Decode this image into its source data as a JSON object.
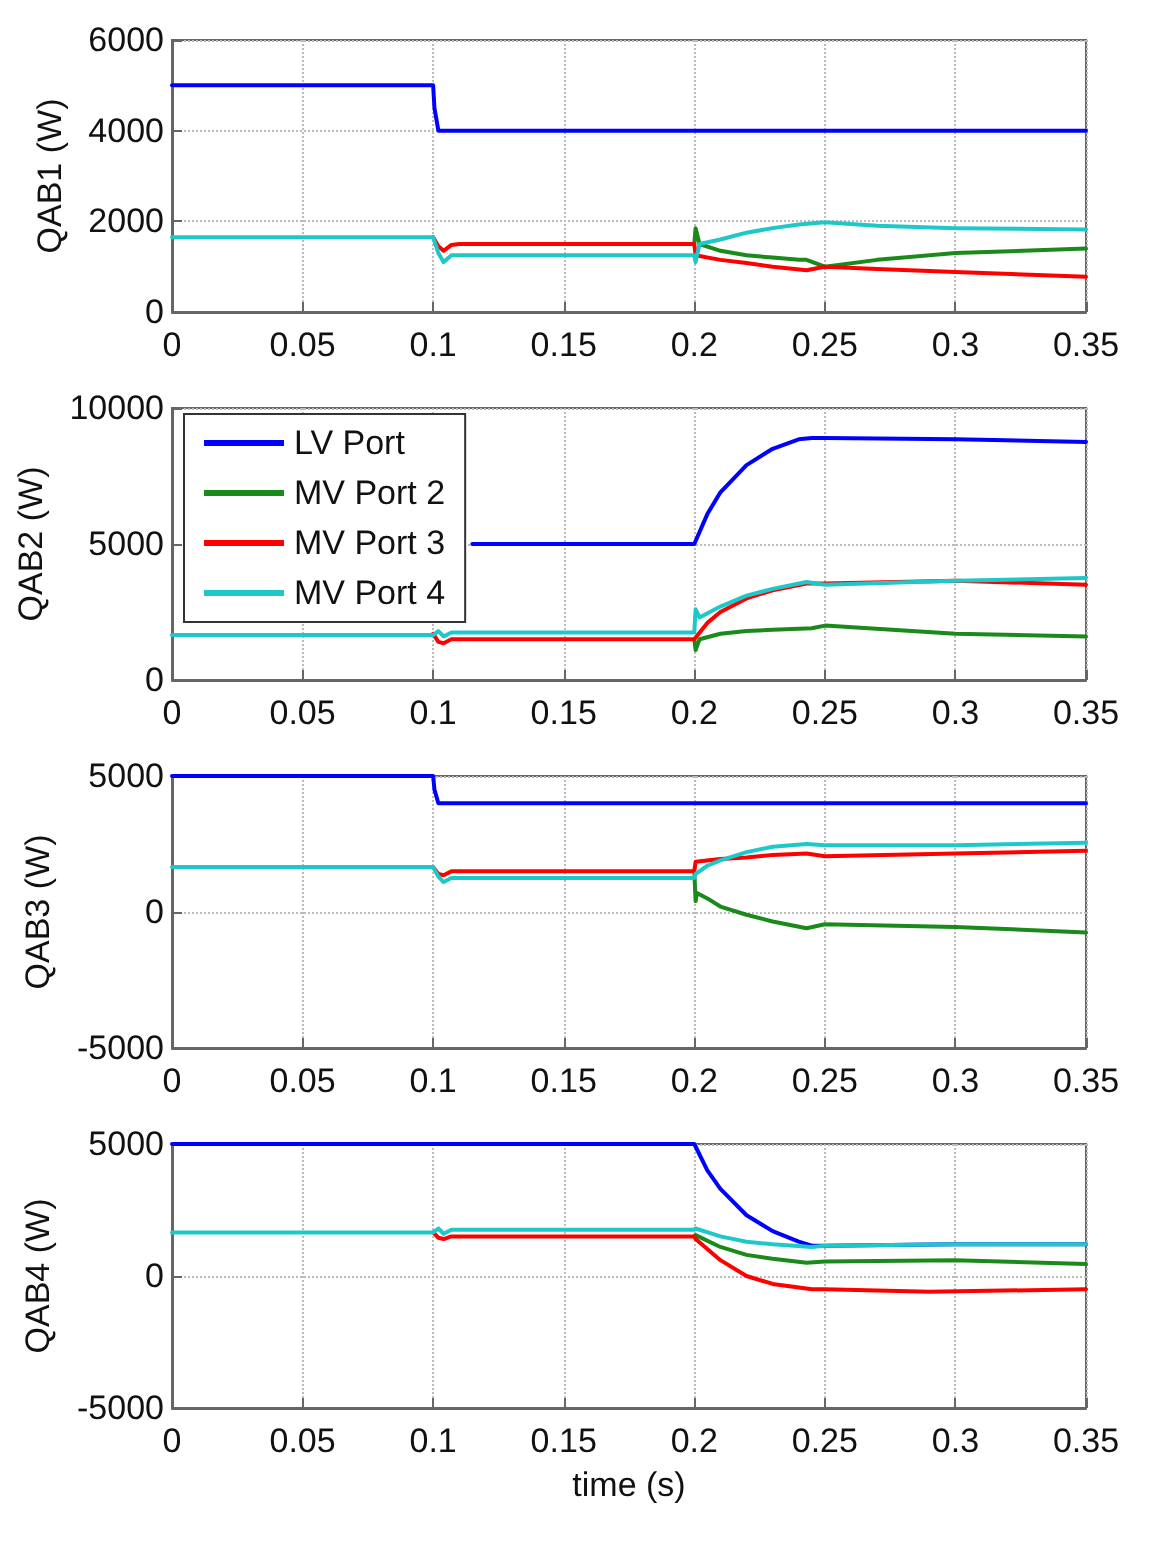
{
  "chart_data": [
    {
      "type": "line",
      "ylabel": "QAB1 (W)",
      "xlim": [
        0,
        0.35
      ],
      "xticks": [
        0,
        0.05,
        0.1,
        0.15,
        0.2,
        0.25,
        0.3,
        0.35
      ],
      "ylim": [
        0,
        6000
      ],
      "yticks": [
        0,
        2000,
        4000,
        6000
      ],
      "grid": true,
      "line_style": "solid",
      "marker": "none",
      "series": [
        {
          "color": "#0000ff",
          "x": [
            0,
            0.1,
            0.1005,
            0.102,
            0.35
          ],
          "values": [
            5000,
            5000,
            4500,
            4000,
            4000
          ]
        },
        {
          "color": "#1a8a1a",
          "x": [
            0.2,
            0.2005,
            0.202,
            0.21,
            0.22,
            0.23,
            0.24,
            0.243,
            0.25,
            0.27,
            0.3,
            0.35
          ],
          "values": [
            1500,
            1850,
            1500,
            1350,
            1250,
            1200,
            1150,
            1150,
            1000,
            1150,
            1300,
            1400
          ]
        },
        {
          "color": "#ff0000",
          "x": [
            0.1,
            0.102,
            0.104,
            0.107,
            0.11,
            0.2,
            0.2005,
            0.21,
            0.22,
            0.23,
            0.243,
            0.25,
            0.27,
            0.3,
            0.35
          ],
          "values": [
            1650,
            1450,
            1350,
            1480,
            1500,
            1500,
            1250,
            1150,
            1080,
            1000,
            920,
            1000,
            950,
            880,
            780
          ]
        },
        {
          "color": "#1fc8c8",
          "x": [
            0,
            0.1,
            0.102,
            0.104,
            0.107,
            0.11,
            0.2,
            0.2005,
            0.202,
            0.21,
            0.22,
            0.23,
            0.24,
            0.25,
            0.27,
            0.3,
            0.35
          ],
          "values": [
            1650,
            1650,
            1300,
            1100,
            1250,
            1250,
            1250,
            1100,
            1500,
            1600,
            1750,
            1850,
            1930,
            1980,
            1900,
            1850,
            1820
          ]
        }
      ]
    },
    {
      "type": "line",
      "ylabel": "QAB2 (W)",
      "xlim": [
        0,
        0.35
      ],
      "xticks": [
        0,
        0.05,
        0.1,
        0.15,
        0.2,
        0.25,
        0.3,
        0.35
      ],
      "ylim": [
        0,
        10000
      ],
      "yticks": [
        0,
        5000,
        10000
      ],
      "grid": true,
      "line_style": "solid",
      "marker": "none",
      "legend": "top left",
      "series": [
        {
          "name": "LV Port",
          "color": "#0000ff",
          "x": [
            0.115,
            0.2,
            0.205,
            0.21,
            0.22,
            0.23,
            0.24,
            0.245,
            0.25,
            0.3,
            0.35
          ],
          "values": [
            5000,
            5000,
            6100,
            6900,
            7900,
            8500,
            8850,
            8900,
            8900,
            8850,
            8750
          ]
        },
        {
          "name": "MV Port 2",
          "color": "#1a8a1a",
          "x": [
            0.2,
            0.2005,
            0.202,
            0.21,
            0.22,
            0.23,
            0.245,
            0.25,
            0.3,
            0.35
          ],
          "values": [
            1500,
            1100,
            1500,
            1700,
            1800,
            1850,
            1900,
            2000,
            1700,
            1600
          ]
        },
        {
          "name": "MV Port 3",
          "color": "#ff0000",
          "x": [
            0.1,
            0.102,
            0.104,
            0.107,
            0.11,
            0.2,
            0.2005,
            0.205,
            0.21,
            0.22,
            0.23,
            0.243,
            0.25,
            0.3,
            0.35
          ],
          "values": [
            1700,
            1400,
            1350,
            1500,
            1500,
            1500,
            1500,
            2100,
            2500,
            3000,
            3300,
            3550,
            3550,
            3650,
            3500
          ]
        },
        {
          "name": "MV Port 4",
          "color": "#1fc8c8",
          "x": [
            0,
            0.1,
            0.102,
            0.104,
            0.107,
            0.11,
            0.2,
            0.2005,
            0.202,
            0.21,
            0.22,
            0.23,
            0.243,
            0.25,
            0.3,
            0.35
          ],
          "values": [
            1650,
            1650,
            1800,
            1600,
            1750,
            1750,
            1750,
            2600,
            2300,
            2700,
            3100,
            3350,
            3600,
            3500,
            3650,
            3750
          ]
        }
      ]
    },
    {
      "type": "line",
      "ylabel": "QAB3 (W)",
      "xlim": [
        0,
        0.35
      ],
      "xticks": [
        0,
        0.05,
        0.1,
        0.15,
        0.2,
        0.25,
        0.3,
        0.35
      ],
      "ylim": [
        -5000,
        5000
      ],
      "yticks": [
        -5000,
        0,
        5000
      ],
      "grid": true,
      "line_style": "solid",
      "marker": "none",
      "series": [
        {
          "color": "#0000ff",
          "x": [
            0,
            0.1,
            0.1005,
            0.102,
            0.35
          ],
          "values": [
            5000,
            5000,
            4500,
            4000,
            4000
          ]
        },
        {
          "color": "#1a8a1a",
          "x": [
            0.2,
            0.2005,
            0.201,
            0.205,
            0.21,
            0.22,
            0.23,
            0.243,
            0.25,
            0.3,
            0.35
          ],
          "values": [
            1500,
            400,
            700,
            500,
            200,
            -100,
            -350,
            -600,
            -450,
            -550,
            -750
          ]
        },
        {
          "color": "#ff0000",
          "x": [
            0.1,
            0.102,
            0.104,
            0.107,
            0.11,
            0.2,
            0.2005,
            0.21,
            0.22,
            0.23,
            0.243,
            0.25,
            0.3,
            0.35
          ],
          "values": [
            1650,
            1400,
            1350,
            1500,
            1500,
            1500,
            1850,
            1950,
            2000,
            2100,
            2150,
            2050,
            2150,
            2250
          ]
        },
        {
          "color": "#1fc8c8",
          "x": [
            0,
            0.1,
            0.102,
            0.104,
            0.107,
            0.11,
            0.2,
            0.2005,
            0.205,
            0.21,
            0.22,
            0.23,
            0.243,
            0.25,
            0.3,
            0.35
          ],
          "values": [
            1650,
            1650,
            1300,
            1100,
            1250,
            1250,
            1250,
            1400,
            1700,
            1900,
            2200,
            2400,
            2500,
            2450,
            2450,
            2550
          ]
        }
      ]
    },
    {
      "type": "line",
      "xlabel": "time (s)",
      "ylabel": "QAB4 (W)",
      "xlim": [
        0,
        0.35
      ],
      "xticks": [
        0,
        0.05,
        0.1,
        0.15,
        0.2,
        0.25,
        0.3,
        0.35
      ],
      "ylim": [
        -5000,
        5000
      ],
      "yticks": [
        -5000,
        0,
        5000
      ],
      "grid": true,
      "line_style": "solid",
      "marker": "none",
      "series": [
        {
          "color": "#0000ff",
          "x": [
            0,
            0.2,
            0.205,
            0.21,
            0.22,
            0.23,
            0.24,
            0.245,
            0.25,
            0.3,
            0.35
          ],
          "values": [
            5000,
            5000,
            4000,
            3300,
            2300,
            1700,
            1300,
            1150,
            1150,
            1200,
            1200
          ]
        },
        {
          "color": "#1a8a1a",
          "x": [
            0.2,
            0.2005,
            0.21,
            0.22,
            0.23,
            0.243,
            0.25,
            0.3,
            0.35
          ],
          "values": [
            1500,
            1550,
            1100,
            800,
            650,
            500,
            550,
            600,
            450
          ]
        },
        {
          "color": "#ff0000",
          "x": [
            0.1,
            0.102,
            0.104,
            0.107,
            0.11,
            0.2,
            0.2005,
            0.21,
            0.22,
            0.23,
            0.245,
            0.25,
            0.29,
            0.35
          ],
          "values": [
            1650,
            1450,
            1400,
            1500,
            1500,
            1500,
            1400,
            600,
            0,
            -300,
            -500,
            -500,
            -600,
            -500
          ]
        },
        {
          "color": "#1fc8c8",
          "x": [
            0,
            0.1,
            0.102,
            0.104,
            0.107,
            0.11,
            0.2,
            0.2005,
            0.21,
            0.22,
            0.23,
            0.245,
            0.25,
            0.3,
            0.35
          ],
          "values": [
            1650,
            1650,
            1800,
            1600,
            1750,
            1750,
            1750,
            1800,
            1500,
            1300,
            1200,
            1100,
            1150,
            1200,
            1200
          ]
        }
      ]
    }
  ]
}
